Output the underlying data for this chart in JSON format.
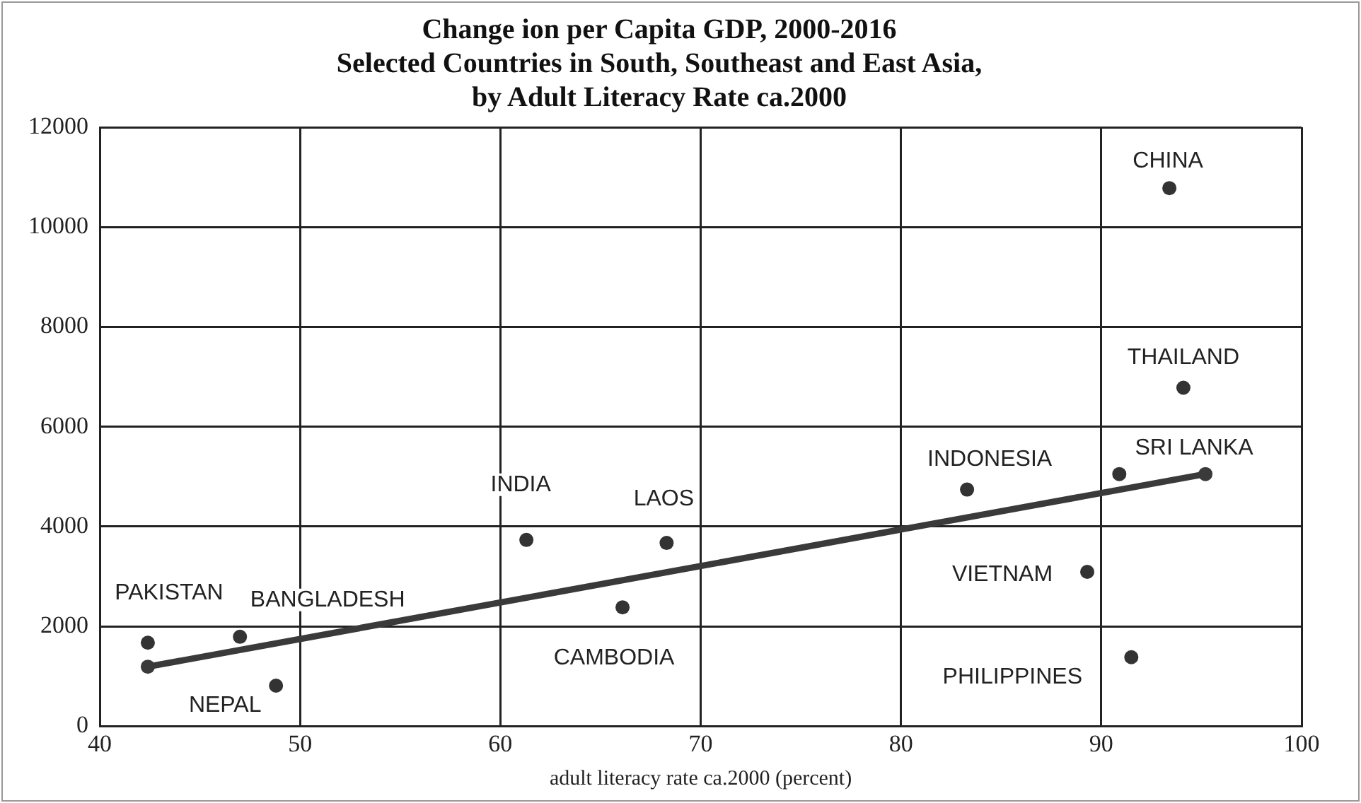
{
  "chart_data": {
    "type": "scatter",
    "title": "Change ion per Capita GDP, 2000-2016\nSelected Countries in South, Southeast and East Asia,\nby Adult Literacy Rate ca.2000",
    "xlabel": "adult literacy rate ca.2000 (percent)",
    "series": [
      {
        "color": "#333333",
        "marker": "circle",
        "x": [
          42.4,
          47.0,
          48.8,
          61.3,
          66.1,
          68.3,
          83.3,
          90.9,
          89.3,
          91.5,
          94.1,
          93.4
        ],
        "values": [
          1670,
          1790,
          810,
          3730,
          2380,
          3670,
          4740,
          5050,
          3090,
          1380,
          6780,
          10780
        ]
      },
      {
        "type": "line",
        "color": "#3a3a3a",
        "marker": "circle",
        "x": [
          42.4,
          95.2
        ],
        "values": [
          1190,
          5050
        ]
      }
    ],
    "annotations": [
      {
        "text": "PAKISTAN",
        "x": 42.4,
        "y": 1670
      },
      {
        "text": "BANGLADESH",
        "x": 47.0,
        "y": 1790
      },
      {
        "text": "NEPAL",
        "x": 48.8,
        "y": 810
      },
      {
        "text": "INDIA",
        "x": 61.3,
        "y": 3730
      },
      {
        "text": "LAOS",
        "x": 68.3,
        "y": 3670
      },
      {
        "text": "CAMBODIA",
        "x": 66.1,
        "y": 2380
      },
      {
        "text": "INDONESIA",
        "x": 83.3,
        "y": 4740
      },
      {
        "text": "SRI LANKA",
        "x": 95.2,
        "y": 5050
      },
      {
        "text": "VIETNAM",
        "x": 89.3,
        "y": 3090
      },
      {
        "text": "PHILIPPINES",
        "x": 91.5,
        "y": 1380
      },
      {
        "text": "THAILAND",
        "x": 94.1,
        "y": 6780
      },
      {
        "text": "CHINA",
        "x": 93.4,
        "y": 10780
      }
    ],
    "xlim": [
      40,
      100
    ],
    "xticks": [
      40,
      50,
      60,
      70,
      80,
      90,
      100
    ],
    "ylim": [
      0,
      12000
    ],
    "yticks": [
      0,
      2000,
      4000,
      6000,
      8000,
      10000,
      12000
    ],
    "grid": true,
    "legend": false
  }
}
